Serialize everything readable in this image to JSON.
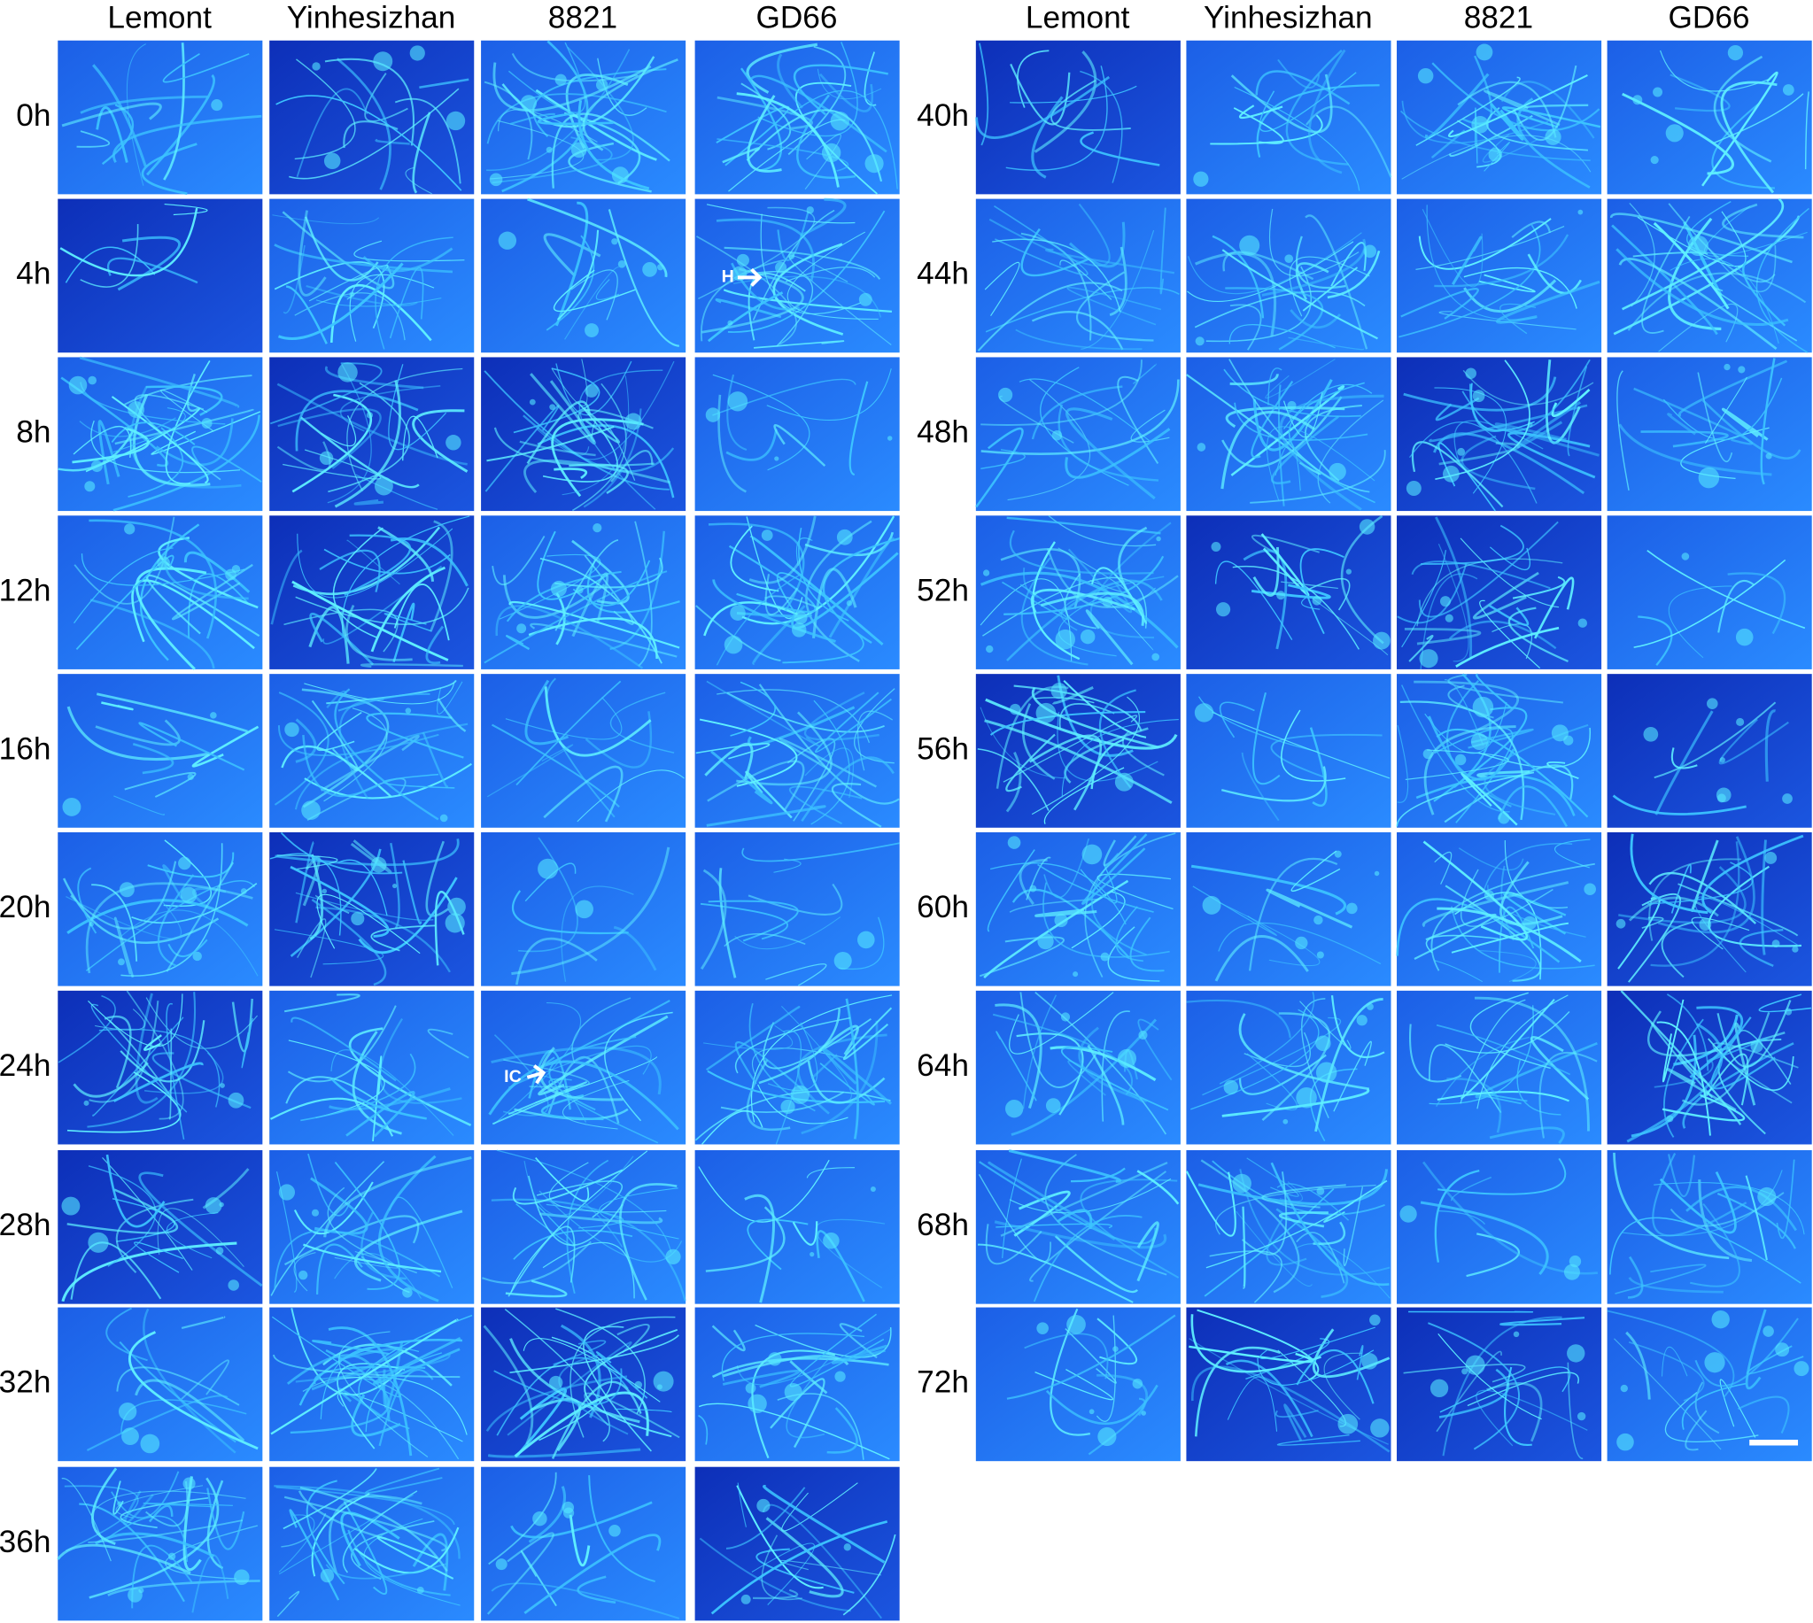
{
  "left": {
    "columns": [
      "Lemont",
      "Yinhesizhan",
      "8821",
      "GD66"
    ],
    "rows": [
      "0h",
      "4h",
      "8h",
      "12h",
      "16h",
      "20h",
      "24h",
      "28h",
      "32h",
      "36h"
    ]
  },
  "right": {
    "columns": [
      "Lemont",
      "Yinhesizhan",
      "8821",
      "GD66"
    ],
    "rows": [
      "40h",
      "44h",
      "48h",
      "52h",
      "56h",
      "60h",
      "64h",
      "68h",
      "72h"
    ]
  },
  "annotations": [
    {
      "label": "H"
    },
    {
      "label": "IC"
    }
  ]
}
